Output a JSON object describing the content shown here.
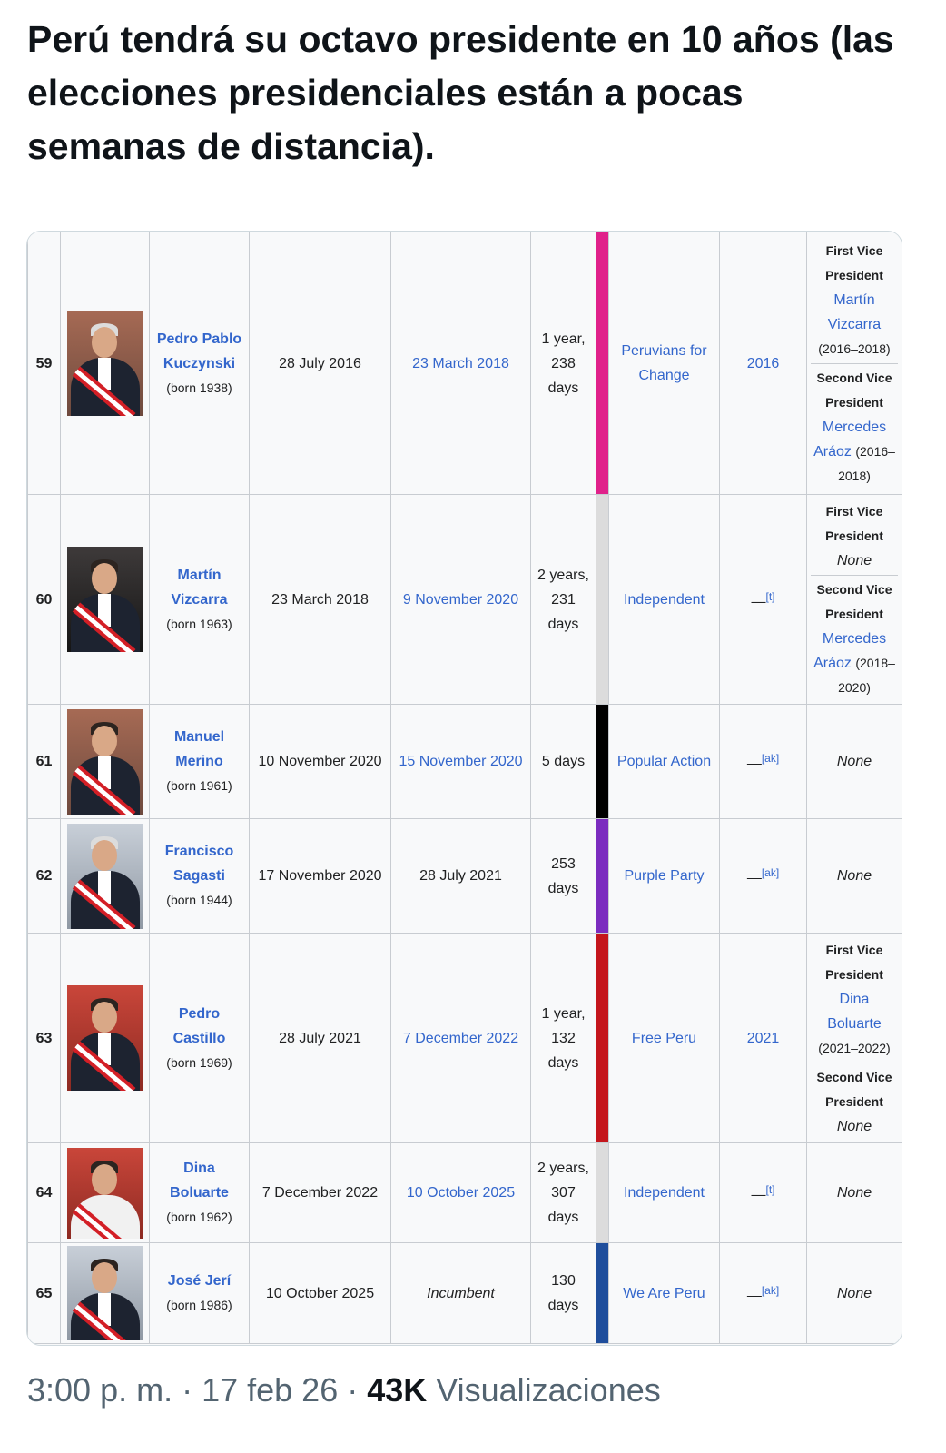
{
  "tweet": {
    "text": "Perú tendrá su octavo presidente en 10 años (las elecciones presidenciales están a pocas semanas de distancia)."
  },
  "footer": {
    "time_date": "3:00 p. m. · 17 feb 26 · ",
    "views_count": "43K",
    "views_label": " Visualizaciones"
  },
  "rows": [
    {
      "number": "59",
      "name": "Pedro Pablo Kuczynski",
      "born": "(born 1938)",
      "took_office": "28 July 2016",
      "left_office": "23 March 2018",
      "duration": "1 year, 238 days",
      "party": "Peruvians for Change",
      "party_color": "#e0218a",
      "election": "2016",
      "vp": [
        {
          "head": "First Vice President",
          "name": "Martín Vizcarra",
          "years": "(2016–2018)"
        },
        {
          "head": "Second Vice President",
          "name": "Mercedes Aráoz",
          "years": "(2016–2018)"
        }
      ]
    },
    {
      "number": "60",
      "name": "Martín Vizcarra",
      "born": "(born 1963)",
      "took_office": "23 March 2018",
      "left_office": "9 November 2020",
      "duration": "2 years, 231 days",
      "party": "Independent",
      "party_color": "#dcdcdc",
      "election": "—",
      "election_note": "[t]",
      "vp": [
        {
          "head": "First Vice President",
          "none": "None"
        },
        {
          "head": "Second Vice President",
          "name": "Mercedes Aráoz",
          "years": "(2018–2020)"
        }
      ]
    },
    {
      "number": "61",
      "name": "Manuel Merino",
      "born": "(born 1961)",
      "took_office": "10 November 2020",
      "left_office": "15 November 2020",
      "duration": "5 days",
      "party": "Popular Action",
      "party_color": "#000000",
      "election": "—",
      "election_note": "[ak]",
      "vp_none": "None"
    },
    {
      "number": "62",
      "name": "Francisco Sagasti",
      "born": "(born 1944)",
      "took_office": "17 November 2020",
      "left_office": "28 July 2021",
      "duration": "253 days",
      "party": "Purple Party",
      "party_color": "#7b2cbf",
      "election": "—",
      "election_note": "[ak]",
      "vp_none": "None"
    },
    {
      "number": "63",
      "name": "Pedro Castillo",
      "born": "(born 1969)",
      "took_office": "28 July 2021",
      "left_office": "7 December 2022",
      "duration": "1 year, 132 days",
      "party": "Free Peru",
      "party_color": "#c4161c",
      "election": "2021",
      "vp": [
        {
          "head": "First Vice President",
          "name": "Dina Boluarte",
          "years": "(2021–2022)"
        },
        {
          "head": "Second Vice President",
          "none": "None"
        }
      ]
    },
    {
      "number": "64",
      "name": "Dina Boluarte",
      "born": "(born 1962)",
      "took_office": "7 December 2022",
      "left_office": "10 October 2025",
      "duration": "2 years, 307 days",
      "party": "Independent",
      "party_color": "#dcdcdc",
      "election": "—",
      "election_note": "[t]",
      "vp_none": "None"
    },
    {
      "number": "65",
      "name": "José Jerí",
      "born": "(born 1986)",
      "took_office": "10 October 2025",
      "left_office": "Incumbent",
      "duration": "130 days",
      "party": "We Are Peru",
      "party_color": "#1f4e9c",
      "election": "—",
      "election_note": "[ak]",
      "vp_none": "None"
    }
  ],
  "colors": {
    "link": "#3366cc",
    "border": "#c8ccd1",
    "cell_bg": "#f8f9fa",
    "footer_text": "#536471"
  }
}
